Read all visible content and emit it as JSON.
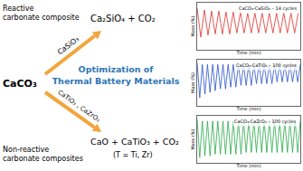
{
  "diagram": {
    "reactant": "CaCO₃",
    "title_lines": [
      "Optimization of",
      "Thermal Battery Materials"
    ],
    "reactive": {
      "label_lines": [
        "Reactive",
        "carbonate composite"
      ],
      "reagent": "CaSiO₃",
      "product": "Ca₂SiO₄ + CO₂"
    },
    "non_reactive": {
      "label_lines": [
        "Non-reactive",
        "carbonate composites"
      ],
      "reagent": "CaTiO₃ , CaZrO₃",
      "product": "CaO + CaTiO₃ + CO₂",
      "note": "(T = Ti, Zr)"
    }
  },
  "chart_data": [
    {
      "type": "line",
      "title": "CaCO₃-CaSiO₃ – 14 cycles",
      "x_label": "Time (min)",
      "y_label": "Mass (%)",
      "color": "#e0302a",
      "x": [
        0,
        35,
        70,
        105,
        140,
        175,
        210,
        245,
        280,
        315,
        350,
        385,
        420,
        455,
        490,
        525,
        560,
        595,
        630,
        665,
        700,
        735,
        770,
        805,
        840,
        875,
        910,
        945,
        980
      ],
      "values": [
        100,
        72,
        98,
        74,
        97,
        75,
        97,
        75,
        96,
        75,
        96,
        76,
        96,
        76,
        95,
        76,
        95,
        76,
        95,
        76,
        95,
        76,
        95,
        76,
        95,
        76,
        95,
        76,
        95
      ],
      "xlim": [
        0,
        1000
      ],
      "ylim": [
        60,
        105
      ],
      "tick_labels": false,
      "grid": false
    },
    {
      "type": "line",
      "title": "CaCO₃-CaTiO₃ – 100 cycles",
      "x_label": "Time (min)",
      "y_label": "Mass (%)",
      "color": "#2a52c8",
      "x": [
        0,
        150,
        300,
        450,
        600,
        750,
        900,
        1050,
        1200,
        1350,
        1500,
        1650,
        1800,
        1950,
        2100,
        2250,
        2400,
        2550,
        2700,
        2850,
        3000,
        3150,
        3300,
        3450,
        3600,
        3750,
        3900,
        4050,
        4200,
        4350,
        4500,
        4650,
        4800,
        4950,
        5100,
        5250,
        5400,
        5550,
        5700,
        5850,
        6000
      ],
      "values": [
        100,
        80,
        99,
        82,
        99,
        83,
        99,
        84,
        99,
        85,
        99,
        85,
        99,
        86,
        99,
        86,
        99,
        87,
        99,
        87,
        99,
        87,
        99,
        88,
        99,
        88,
        99,
        88,
        99,
        88,
        99,
        89,
        99,
        89,
        99,
        89,
        99,
        89,
        99,
        89,
        99
      ],
      "xlim": [
        0,
        6000
      ],
      "ylim": [
        75,
        102
      ],
      "tick_labels": false,
      "grid": false
    },
    {
      "type": "line",
      "title": "CaCO₃-CaZrO₃ – 100 cycles",
      "x_label": "Time (min)",
      "y_label": "Mass (%)",
      "color": "#2aa84a",
      "x": [
        0,
        150,
        300,
        450,
        600,
        750,
        900,
        1050,
        1200,
        1350,
        1500,
        1650,
        1800,
        1950,
        2100,
        2250,
        2400,
        2550,
        2700,
        2850,
        3000,
        3150,
        3300,
        3450,
        3600,
        3750,
        3900,
        4050,
        4200,
        4350,
        4500,
        4650,
        4800,
        4950,
        5100,
        5250,
        5400,
        5550,
        5700,
        5850,
        6000
      ],
      "values": [
        100,
        78,
        99,
        79,
        99,
        79,
        99,
        80,
        99,
        80,
        99,
        80,
        99,
        80,
        99,
        80,
        99,
        80,
        99,
        81,
        99,
        81,
        99,
        81,
        99,
        81,
        99,
        81,
        99,
        81,
        99,
        81,
        99,
        81,
        99,
        81,
        99,
        81,
        99,
        81,
        99
      ],
      "xlim": [
        0,
        6000
      ],
      "ylim": [
        75,
        102
      ],
      "tick_labels": false,
      "grid": false
    }
  ]
}
